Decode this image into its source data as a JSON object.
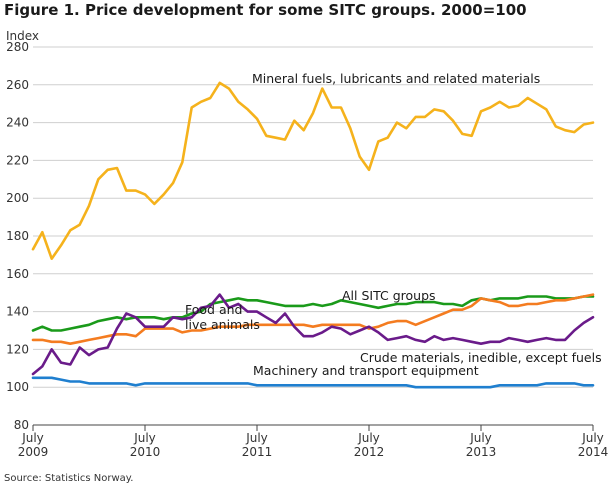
{
  "chart_data": {
    "type": "line",
    "title": "Figure 1. Price development for some SITC groups. 2000=100",
    "ylabel": "Index",
    "xlabel": "",
    "source": "Source: Statistics Norway.",
    "ylim": [
      80,
      280
    ],
    "yticks": [
      80,
      100,
      120,
      140,
      160,
      180,
      200,
      220,
      240,
      260,
      280
    ],
    "xtick_labels": [
      {
        "month": "July",
        "year": "2009"
      },
      {
        "month": "July",
        "year": "2010"
      },
      {
        "month": "July",
        "year": "2011"
      },
      {
        "month": "July",
        "year": "2012"
      },
      {
        "month": "July",
        "year": "2013"
      },
      {
        "month": "July",
        "year": "2014"
      }
    ],
    "x": [
      "2009-07",
      "2009-08",
      "2009-09",
      "2009-10",
      "2009-11",
      "2009-12",
      "2010-01",
      "2010-02",
      "2010-03",
      "2010-04",
      "2010-05",
      "2010-06",
      "2010-07",
      "2010-08",
      "2010-09",
      "2010-10",
      "2010-11",
      "2010-12",
      "2011-01",
      "2011-02",
      "2011-03",
      "2011-04",
      "2011-05",
      "2011-06",
      "2011-07",
      "2011-08",
      "2011-09",
      "2011-10",
      "2011-11",
      "2011-12",
      "2012-01",
      "2012-02",
      "2012-03",
      "2012-04",
      "2012-05",
      "2012-06",
      "2012-07",
      "2012-08",
      "2012-09",
      "2012-10",
      "2012-11",
      "2012-12",
      "2013-01",
      "2013-02",
      "2013-03",
      "2013-04",
      "2013-05",
      "2013-06",
      "2013-07",
      "2013-08",
      "2013-09",
      "2013-10",
      "2013-11",
      "2013-12",
      "2014-01",
      "2014-02",
      "2014-03",
      "2014-04",
      "2014-05",
      "2014-06",
      "2014-07"
    ],
    "grid": "horizontal",
    "series": [
      {
        "name": "Mineral fuels, lubricants and related materials",
        "color": "#f5b21c",
        "values": [
          173,
          182,
          168,
          175,
          183,
          186,
          196,
          210,
          215,
          216,
          204,
          204,
          202,
          197,
          202,
          208,
          219,
          248,
          251,
          253,
          261,
          258,
          251,
          247,
          242,
          233,
          232,
          231,
          241,
          236,
          245,
          258,
          248,
          248,
          237,
          222,
          215,
          230,
          232,
          240,
          237,
          243,
          243,
          247,
          246,
          241,
          234,
          233,
          246,
          248,
          251,
          248,
          249,
          253,
          250,
          247,
          238,
          236,
          235,
          239,
          240
        ],
        "label": "Mineral fuels, lubricants and related materials"
      },
      {
        "name": "All SITC groups",
        "color": "#1a9a1a",
        "values": [
          130,
          132,
          130,
          130,
          131,
          132,
          133,
          135,
          136,
          137,
          136,
          137,
          137,
          137,
          136,
          137,
          137,
          139,
          140,
          144,
          145,
          146,
          147,
          146,
          146,
          145,
          144,
          143,
          143,
          143,
          144,
          143,
          144,
          146,
          145,
          144,
          143,
          142,
          143,
          144,
          144,
          145,
          145,
          145,
          144,
          144,
          143,
          146,
          147,
          146,
          147,
          147,
          147,
          148,
          148,
          148,
          147,
          147,
          147,
          148,
          148
        ],
        "label": "All SITC groups"
      },
      {
        "name": "Food and live animals",
        "color": "#f47c20",
        "values": [
          125,
          125,
          124,
          124,
          123,
          124,
          125,
          126,
          127,
          128,
          128,
          127,
          131,
          131,
          131,
          131,
          129,
          130,
          130,
          131,
          132,
          132,
          132,
          133,
          133,
          133,
          133,
          133,
          133,
          133,
          132,
          133,
          133,
          133,
          133,
          133,
          131,
          132,
          134,
          135,
          135,
          133,
          135,
          137,
          139,
          141,
          141,
          143,
          147,
          146,
          145,
          143,
          143,
          144,
          144,
          145,
          146,
          146,
          147,
          148,
          149
        ],
        "label": "Food and\nlive animals"
      },
      {
        "name": "Crude materials, inedible, except fuels",
        "color": "#6a1b8a",
        "values": [
          107,
          111,
          120,
          113,
          112,
          121,
          117,
          120,
          121,
          131,
          139,
          137,
          132,
          132,
          132,
          137,
          136,
          137,
          142,
          143,
          149,
          142,
          144,
          140,
          140,
          137,
          134,
          139,
          132,
          127,
          127,
          129,
          132,
          131,
          128,
          130,
          132,
          129,
          125,
          126,
          127,
          125,
          124,
          127,
          125,
          126,
          125,
          124,
          123,
          124,
          124,
          126,
          125,
          124,
          125,
          126,
          125,
          125,
          130,
          134,
          137
        ],
        "label": "Crude materials, inedible, except fuels"
      },
      {
        "name": "Machinery and transport equipment",
        "color": "#1f7fcf",
        "values": [
          105,
          105,
          105,
          104,
          103,
          103,
          102,
          102,
          102,
          102,
          102,
          101,
          102,
          102,
          102,
          102,
          102,
          102,
          102,
          102,
          102,
          102,
          102,
          102,
          101,
          101,
          101,
          101,
          101,
          101,
          101,
          101,
          101,
          101,
          101,
          101,
          101,
          101,
          101,
          101,
          101,
          100,
          100,
          100,
          100,
          100,
          100,
          100,
          100,
          100,
          101,
          101,
          101,
          101,
          101,
          102,
          102,
          102,
          102,
          101,
          101
        ],
        "label": "Machinery and transport equipment"
      }
    ]
  }
}
